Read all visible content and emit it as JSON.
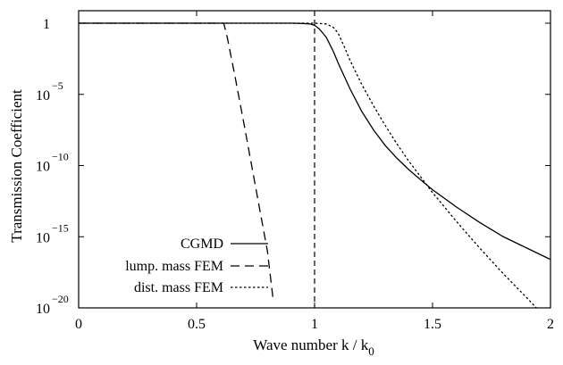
{
  "chart_data": {
    "type": "line",
    "xlabel": "Wave number k / k",
    "xlabel_sub": "0",
    "ylabel": "Transmission Coefficient",
    "xlim": [
      0,
      2
    ],
    "ylim_log10": [
      -20,
      0
    ],
    "y_scale": "log",
    "x_ticks": [
      {
        "value": 0,
        "label": "0"
      },
      {
        "value": 0.5,
        "label": "0.5"
      },
      {
        "value": 1,
        "label": "1"
      },
      {
        "value": 1.5,
        "label": "1.5"
      },
      {
        "value": 2,
        "label": "2"
      }
    ],
    "y_ticks": [
      {
        "log10": 0,
        "base": "1",
        "exp": ""
      },
      {
        "log10": -5,
        "base": "10",
        "exp": "−5"
      },
      {
        "log10": -10,
        "base": "10",
        "exp": "−10"
      },
      {
        "log10": -15,
        "base": "10",
        "exp": "−15"
      },
      {
        "log10": -20,
        "base": "10",
        "exp": "−20"
      }
    ],
    "legend_position": "bottom-left",
    "grid": false,
    "reference_line": {
      "x": 1,
      "style": "dashed"
    },
    "series": [
      {
        "name": "CGMD",
        "style": "solid",
        "x": [
          0,
          0.5,
          0.9,
          0.95,
          0.98,
          1.0,
          1.02,
          1.05,
          1.08,
          1.1,
          1.15,
          1.2,
          1.25,
          1.3,
          1.35,
          1.4,
          1.45,
          1.5,
          1.6,
          1.7,
          1.8,
          1.9,
          2.0
        ],
        "log10_y": [
          0,
          0,
          0,
          -0.02,
          -0.05,
          -0.15,
          -0.4,
          -1.0,
          -2.0,
          -2.8,
          -4.6,
          -6.2,
          -7.5,
          -8.6,
          -9.5,
          -10.3,
          -11.0,
          -11.7,
          -12.9,
          -14.0,
          -15.0,
          -15.8,
          -16.6
        ]
      },
      {
        "name": "lump. mass FEM",
        "style": "dashed",
        "x": [
          0,
          0.5,
          0.615,
          0.63,
          0.66,
          0.7,
          0.75,
          0.8,
          0.825
        ],
        "log10_y": [
          0,
          0,
          0,
          -1.0,
          -3.5,
          -7.0,
          -11.5,
          -16.0,
          -19.5
        ]
      },
      {
        "name": "dist. mass FEM",
        "style": "dotted",
        "x": [
          0,
          0.5,
          1.0,
          1.05,
          1.08,
          1.1,
          1.13,
          1.15,
          1.2,
          1.25,
          1.3,
          1.35,
          1.4,
          1.45,
          1.5,
          1.6,
          1.7,
          1.8,
          1.9,
          1.94
        ],
        "log10_y": [
          0,
          0,
          0,
          -0.05,
          -0.3,
          -0.7,
          -1.8,
          -2.6,
          -4.3,
          -5.8,
          -7.2,
          -8.5,
          -9.7,
          -10.8,
          -11.9,
          -13.9,
          -15.8,
          -17.6,
          -19.3,
          -20
        ]
      }
    ]
  }
}
